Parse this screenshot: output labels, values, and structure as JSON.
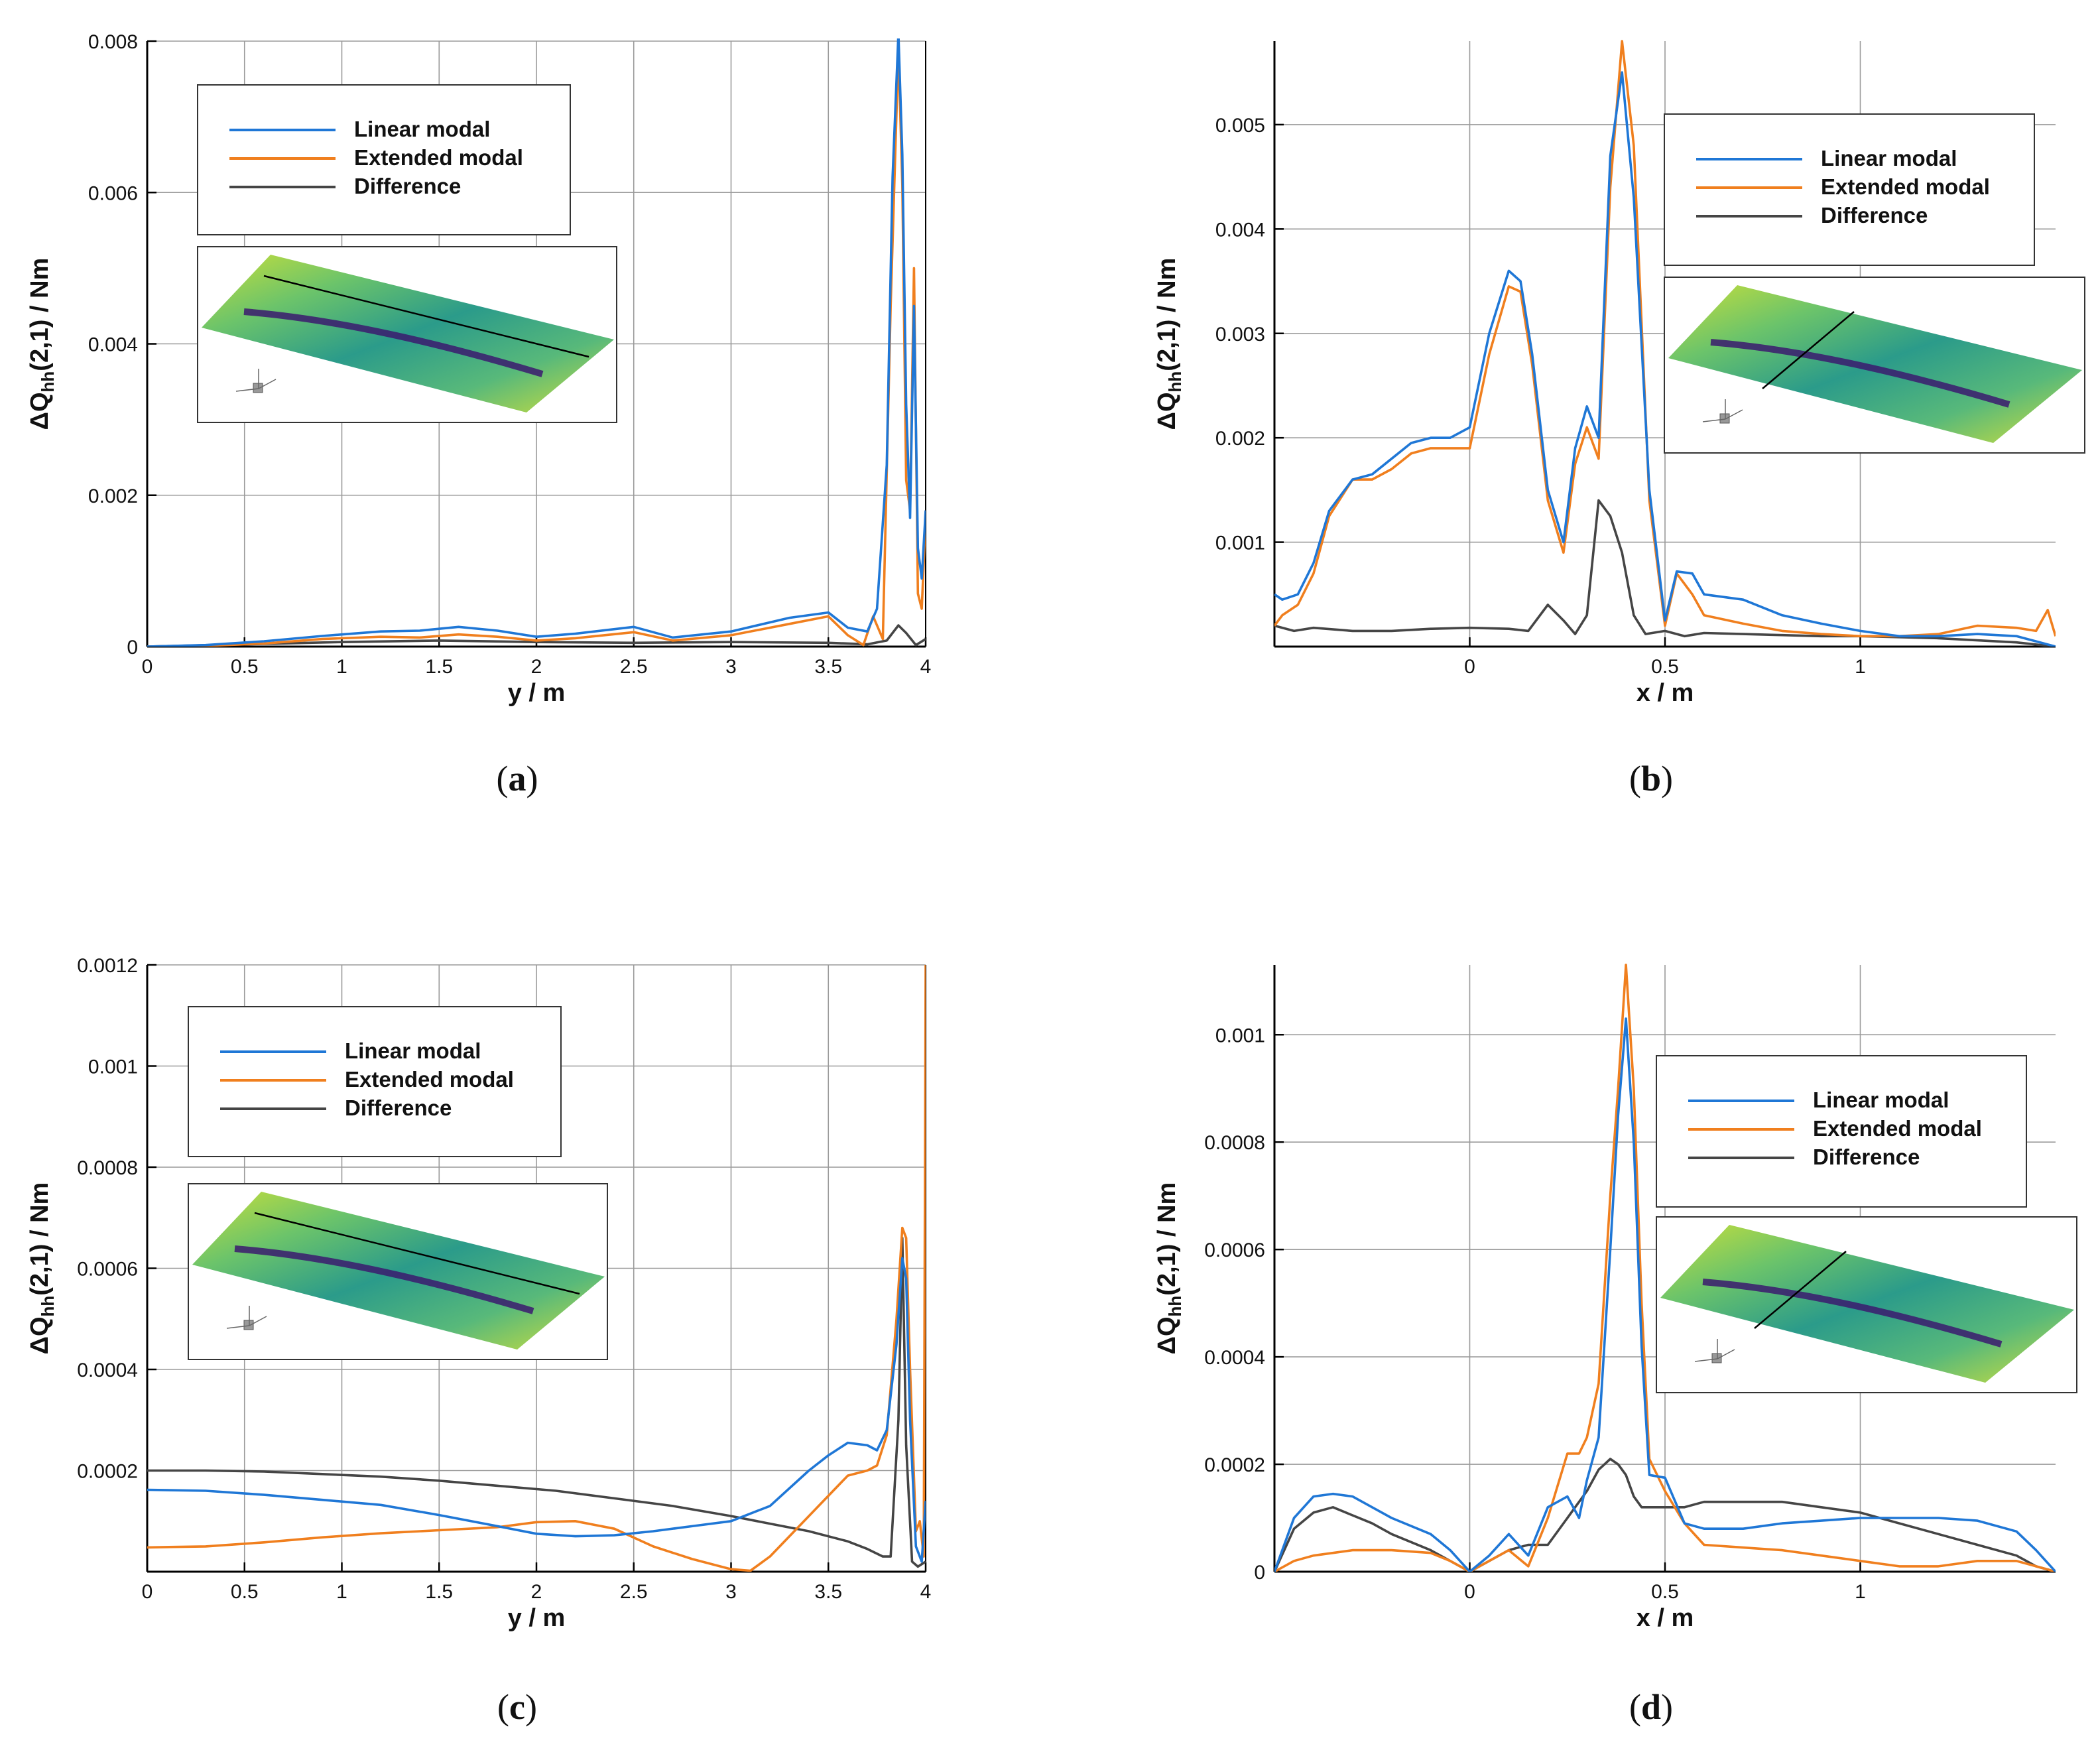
{
  "colors": {
    "linear": "#1f77d6",
    "extended": "#f07f1e",
    "difference": "#454545"
  },
  "chart_data": [
    {
      "id": "a",
      "type": "line",
      "caption": "a",
      "xlabel": "y / m",
      "ylabel_main": "ΔQ",
      "ylabel_sub": "hh",
      "ylabel_rest": "(2,1) / Nm",
      "xlim": [
        0,
        4
      ],
      "ylim": [
        0,
        0.008
      ],
      "xticks": [
        0,
        0.5,
        1,
        1.5,
        2,
        2.5,
        3,
        3.5,
        4
      ],
      "xtick_labels": [
        "0",
        "0.5",
        "1",
        "1.5",
        "2",
        "2.5",
        "3",
        "3.5",
        "4"
      ],
      "yticks": [
        0,
        0.002,
        0.004,
        0.006,
        0.008
      ],
      "ytick_labels": [
        "0",
        "0.002",
        "0.004",
        "0.006",
        "0.008"
      ],
      "legend": [
        "Linear modal",
        "Extended modal",
        "Difference"
      ],
      "inset": "spanwise-cut",
      "series": [
        {
          "name": "Linear modal",
          "x": [
            0,
            0.3,
            0.6,
            0.9,
            1.2,
            1.4,
            1.6,
            1.8,
            2.0,
            2.2,
            2.5,
            2.7,
            3.0,
            3.3,
            3.5,
            3.6,
            3.7,
            3.75,
            3.8,
            3.83,
            3.86,
            3.88,
            3.9,
            3.92,
            3.94,
            3.96,
            3.98,
            4.0
          ],
          "y": [
            0,
            2e-05,
            7e-05,
            0.00014,
            0.0002,
            0.00021,
            0.00026,
            0.00021,
            0.00013,
            0.00017,
            0.00026,
            0.00012,
            0.0002,
            0.00038,
            0.00045,
            0.00025,
            0.0002,
            0.0005,
            0.0024,
            0.0062,
            0.0081,
            0.0065,
            0.0032,
            0.0017,
            0.0045,
            0.0013,
            0.0009,
            0.0018
          ]
        },
        {
          "name": "Extended modal",
          "x": [
            0,
            0.3,
            0.6,
            0.9,
            1.2,
            1.4,
            1.6,
            1.8,
            2.0,
            2.2,
            2.5,
            2.7,
            3.0,
            3.3,
            3.5,
            3.6,
            3.68,
            3.73,
            3.78,
            3.82,
            3.86,
            3.88,
            3.9,
            3.92,
            3.94,
            3.96,
            3.98,
            4.0
          ],
          "y": [
            0,
            1e-05,
            4e-05,
            0.0001,
            0.00013,
            0.00012,
            0.00016,
            0.00013,
            8e-05,
            0.00011,
            0.00019,
            8e-05,
            0.00015,
            0.0003,
            0.0004,
            0.00015,
            2e-05,
            0.0004,
            0.0001,
            0.0045,
            0.0079,
            0.0061,
            0.0022,
            0.0018,
            0.005,
            0.0007,
            0.0005,
            0.0017
          ]
        },
        {
          "name": "Difference",
          "x": [
            0,
            0.5,
            1.0,
            1.5,
            2.0,
            2.5,
            3.0,
            3.5,
            3.7,
            3.8,
            3.86,
            3.9,
            3.95,
            4.0
          ],
          "y": [
            0,
            3e-05,
            6e-05,
            8e-05,
            6e-05,
            5e-05,
            6e-05,
            5e-05,
            3e-05,
            8e-05,
            0.00028,
            0.00018,
            2e-05,
            0.0001
          ]
        }
      ]
    },
    {
      "id": "b",
      "type": "line",
      "caption": "b",
      "xlabel": "x / m",
      "ylabel_main": "ΔQ",
      "ylabel_sub": "hh",
      "ylabel_rest": "(2,1) / Nm",
      "xlim": [
        -0.5,
        1.5
      ],
      "ylim": [
        0,
        0.0058
      ],
      "xticks": [
        0,
        0.5,
        1
      ],
      "xtick_labels": [
        "0",
        "0.5",
        "1"
      ],
      "yticks": [
        0.001,
        0.002,
        0.003,
        0.004,
        0.005
      ],
      "ytick_labels": [
        "0.001",
        "0.002",
        "0.003",
        "0.004",
        "0.005"
      ],
      "legend": [
        "Linear modal",
        "Extended modal",
        "Difference"
      ],
      "inset": "chordwise-cut",
      "series": [
        {
          "name": "Linear modal",
          "x": [
            -0.5,
            -0.48,
            -0.44,
            -0.4,
            -0.36,
            -0.3,
            -0.25,
            -0.2,
            -0.15,
            -0.1,
            -0.05,
            0,
            0.05,
            0.1,
            0.13,
            0.16,
            0.2,
            0.24,
            0.27,
            0.3,
            0.33,
            0.36,
            0.39,
            0.42,
            0.46,
            0.5,
            0.53,
            0.57,
            0.6,
            0.7,
            0.8,
            0.9,
            1.0,
            1.1,
            1.2,
            1.3,
            1.4,
            1.45,
            1.5
          ],
          "y": [
            0.0005,
            0.00045,
            0.0005,
            0.0008,
            0.0013,
            0.0016,
            0.00165,
            0.0018,
            0.00195,
            0.002,
            0.002,
            0.0021,
            0.003,
            0.0036,
            0.0035,
            0.0028,
            0.0015,
            0.001,
            0.0019,
            0.0023,
            0.002,
            0.0047,
            0.0055,
            0.0043,
            0.0015,
            0.00025,
            0.00072,
            0.0007,
            0.0005,
            0.00045,
            0.0003,
            0.00022,
            0.00015,
            0.0001,
            0.0001,
            0.00012,
            0.0001,
            5e-05,
            0
          ]
        },
        {
          "name": "Extended modal",
          "x": [
            -0.5,
            -0.48,
            -0.44,
            -0.4,
            -0.36,
            -0.3,
            -0.25,
            -0.2,
            -0.15,
            -0.1,
            -0.05,
            0,
            0.05,
            0.1,
            0.13,
            0.16,
            0.2,
            0.24,
            0.27,
            0.3,
            0.33,
            0.36,
            0.39,
            0.42,
            0.46,
            0.5,
            0.53,
            0.57,
            0.6,
            0.7,
            0.8,
            0.9,
            1.0,
            1.1,
            1.2,
            1.3,
            1.4,
            1.45,
            1.48,
            1.5
          ],
          "y": [
            0.0002,
            0.0003,
            0.0004,
            0.0007,
            0.00125,
            0.0016,
            0.0016,
            0.0017,
            0.00185,
            0.0019,
            0.0019,
            0.0019,
            0.0028,
            0.00345,
            0.0034,
            0.0027,
            0.0014,
            0.0009,
            0.00175,
            0.0021,
            0.0018,
            0.0044,
            0.0058,
            0.0048,
            0.0014,
            0.0002,
            0.0007,
            0.0005,
            0.0003,
            0.00022,
            0.00015,
            0.00012,
            0.0001,
            0.0001,
            0.00012,
            0.0002,
            0.00018,
            0.00015,
            0.00035,
            0.0001
          ]
        },
        {
          "name": "Difference",
          "x": [
            -0.5,
            -0.45,
            -0.4,
            -0.3,
            -0.2,
            -0.1,
            0,
            0.1,
            0.15,
            0.2,
            0.24,
            0.27,
            0.3,
            0.33,
            0.36,
            0.39,
            0.42,
            0.45,
            0.5,
            0.55,
            0.6,
            0.7,
            0.8,
            0.9,
            1.0,
            1.1,
            1.2,
            1.3,
            1.4,
            1.5
          ],
          "y": [
            0.0002,
            0.00015,
            0.00018,
            0.00015,
            0.00015,
            0.00017,
            0.00018,
            0.00017,
            0.00015,
            0.0004,
            0.00025,
            0.00012,
            0.0003,
            0.0014,
            0.00125,
            0.0009,
            0.0003,
            0.00012,
            0.00015,
            0.0001,
            0.00013,
            0.00012,
            0.00011,
            0.0001,
            0.0001,
            9e-05,
            8e-05,
            6e-05,
            4e-05,
            0
          ]
        }
      ]
    },
    {
      "id": "c",
      "type": "line",
      "caption": "c",
      "xlabel": "y / m",
      "ylabel_main": "ΔQ",
      "ylabel_sub": "hh",
      "ylabel_rest": "(2,1) / Nm",
      "xlim": [
        0,
        4
      ],
      "ylim": [
        0,
        0.0012
      ],
      "xticks": [
        0,
        0.5,
        1,
        1.5,
        2,
        2.5,
        3,
        3.5,
        4
      ],
      "xtick_labels": [
        "0",
        "0.5",
        "1",
        "1.5",
        "2",
        "2.5",
        "3",
        "3.5",
        "4"
      ],
      "yticks": [
        0.0002,
        0.0004,
        0.0006,
        0.0008,
        0.001,
        0.0012
      ],
      "ytick_labels": [
        "0.0002",
        "0.0004",
        "0.0006",
        "0.0008",
        "0.001",
        "0.0012"
      ],
      "legend": [
        "Linear modal",
        "Extended modal",
        "Difference"
      ],
      "inset": "spanwise-cut",
      "series": [
        {
          "name": "Linear modal",
          "x": [
            0,
            0.3,
            0.6,
            0.9,
            1.2,
            1.5,
            1.8,
            2.0,
            2.2,
            2.4,
            2.6,
            2.8,
            3.0,
            3.2,
            3.4,
            3.5,
            3.6,
            3.7,
            3.75,
            3.8,
            3.85,
            3.88,
            3.9,
            3.92,
            3.95,
            3.98,
            4.0
          ],
          "y": [
            0.000162,
            0.00016,
            0.000152,
            0.000142,
            0.000132,
            0.000112,
            9e-05,
            7.5e-05,
            7e-05,
            7.2e-05,
            8e-05,
            9e-05,
            0.0001,
            0.00013,
            0.0002,
            0.00023,
            0.000255,
            0.00025,
            0.00024,
            0.00028,
            0.00045,
            0.00062,
            0.00058,
            0.0003,
            5e-05,
            2e-05,
            0.00014
          ]
        },
        {
          "name": "Extended modal",
          "x": [
            0,
            0.3,
            0.6,
            0.9,
            1.2,
            1.5,
            1.8,
            2.0,
            2.2,
            2.4,
            2.6,
            2.8,
            3.0,
            3.1,
            3.2,
            3.4,
            3.6,
            3.7,
            3.75,
            3.8,
            3.85,
            3.88,
            3.9,
            3.92,
            3.95,
            3.97,
            3.99,
            4.0
          ],
          "y": [
            4.8e-05,
            5e-05,
            5.8e-05,
            6.8e-05,
            7.6e-05,
            8.2e-05,
            8.8e-05,
            9.8e-05,
            0.0001,
            8.5e-05,
            5e-05,
            2.5e-05,
            5e-06,
            2e-06,
            3e-05,
            0.00011,
            0.00019,
            0.0002,
            0.00021,
            0.00027,
            0.0005,
            0.00068,
            0.00066,
            0.0004,
            8e-05,
            0.0001,
            3e-05,
            0.0012
          ]
        },
        {
          "name": "Difference",
          "x": [
            0,
            0.3,
            0.6,
            0.9,
            1.2,
            1.5,
            1.8,
            2.1,
            2.4,
            2.7,
            3.0,
            3.2,
            3.4,
            3.6,
            3.7,
            3.78,
            3.82,
            3.86,
            3.88,
            3.9,
            3.93,
            3.96,
            4.0
          ],
          "y": [
            0.0002,
            0.0002,
            0.000198,
            0.000193,
            0.000188,
            0.00018,
            0.00017,
            0.00016,
            0.000145,
            0.00013,
            0.00011,
            9.5e-05,
            8e-05,
            6e-05,
            4.5e-05,
            3e-05,
            3e-05,
            0.0003,
            0.00066,
            0.00025,
            2e-05,
            1e-05,
            2e-05
          ]
        }
      ]
    },
    {
      "id": "d",
      "type": "line",
      "caption": "d",
      "xlabel": "x / m",
      "ylabel_main": "ΔQ",
      "ylabel_sub": "hh",
      "ylabel_rest": "(2,1) / Nm",
      "xlim": [
        -0.5,
        1.5
      ],
      "ylim": [
        0,
        0.00113
      ],
      "xticks": [
        0,
        0.5,
        1
      ],
      "xtick_labels": [
        "0",
        "0.5",
        "1"
      ],
      "yticks": [
        0,
        0.0002,
        0.0004,
        0.0006,
        0.0008,
        0.001
      ],
      "ytick_labels": [
        "0",
        "0.0002",
        "0.0004",
        "0.0006",
        "0.0008",
        "0.001"
      ],
      "legend": [
        "Linear modal",
        "Extended modal",
        "Difference"
      ],
      "inset": "chordwise-cut",
      "series": [
        {
          "name": "Linear modal",
          "x": [
            -0.5,
            -0.45,
            -0.4,
            -0.35,
            -0.3,
            -0.25,
            -0.2,
            -0.1,
            -0.05,
            0,
            0.05,
            0.1,
            0.15,
            0.2,
            0.25,
            0.28,
            0.3,
            0.33,
            0.36,
            0.38,
            0.4,
            0.42,
            0.44,
            0.46,
            0.5,
            0.55,
            0.6,
            0.7,
            0.8,
            0.9,
            1.0,
            1.1,
            1.2,
            1.3,
            1.4,
            1.45,
            1.5
          ],
          "y": [
            0,
            0.0001,
            0.00014,
            0.000145,
            0.00014,
            0.00012,
            0.0001,
            7e-05,
            4e-05,
            0,
            3e-05,
            7e-05,
            3e-05,
            0.00012,
            0.00014,
            0.0001,
            0.00017,
            0.00025,
            0.0006,
            0.00085,
            0.00103,
            0.0008,
            0.00042,
            0.00018,
            0.000175,
            9e-05,
            8e-05,
            8e-05,
            9e-05,
            9.5e-05,
            0.0001,
            0.0001,
            0.0001,
            9.5e-05,
            7.5e-05,
            4e-05,
            0
          ]
        },
        {
          "name": "Extended modal",
          "x": [
            -0.5,
            -0.45,
            -0.4,
            -0.35,
            -0.3,
            -0.25,
            -0.2,
            -0.1,
            -0.05,
            0,
            0.05,
            0.1,
            0.15,
            0.2,
            0.25,
            0.28,
            0.3,
            0.33,
            0.36,
            0.38,
            0.4,
            0.42,
            0.44,
            0.46,
            0.5,
            0.55,
            0.6,
            0.7,
            0.8,
            0.9,
            1.0,
            1.1,
            1.2,
            1.3,
            1.4,
            1.45,
            1.5
          ],
          "y": [
            0,
            2e-05,
            3e-05,
            3.5e-05,
            4e-05,
            4e-05,
            4e-05,
            3.5e-05,
            2e-05,
            0,
            2e-05,
            4e-05,
            1e-05,
            0.0001,
            0.00022,
            0.00022,
            0.00025,
            0.00035,
            0.0007,
            0.0009,
            0.00113,
            0.0009,
            0.0005,
            0.00021,
            0.00015,
            9e-05,
            5e-05,
            4.5e-05,
            4e-05,
            3e-05,
            2e-05,
            1e-05,
            1e-05,
            2e-05,
            2e-05,
            1e-05,
            0
          ]
        },
        {
          "name": "Difference",
          "x": [
            -0.5,
            -0.45,
            -0.4,
            -0.35,
            -0.3,
            -0.25,
            -0.2,
            -0.1,
            -0.05,
            0,
            0.05,
            0.1,
            0.15,
            0.2,
            0.25,
            0.28,
            0.3,
            0.33,
            0.36,
            0.38,
            0.4,
            0.42,
            0.44,
            0.46,
            0.5,
            0.55,
            0.6,
            0.7,
            0.8,
            0.9,
            1.0,
            1.1,
            1.2,
            1.3,
            1.4,
            1.45,
            1.5
          ],
          "y": [
            0,
            8e-05,
            0.00011,
            0.00012,
            0.000105,
            9e-05,
            7e-05,
            4e-05,
            2e-05,
            0,
            2e-05,
            4e-05,
            5e-05,
            5e-05,
            0.0001,
            0.00013,
            0.00015,
            0.00019,
            0.00021,
            0.0002,
            0.00018,
            0.00014,
            0.00012,
            0.00012,
            0.00012,
            0.00012,
            0.00013,
            0.00013,
            0.00013,
            0.00012,
            0.00011,
            9e-05,
            7e-05,
            5e-05,
            3e-05,
            1e-05,
            0
          ]
        }
      ]
    }
  ]
}
